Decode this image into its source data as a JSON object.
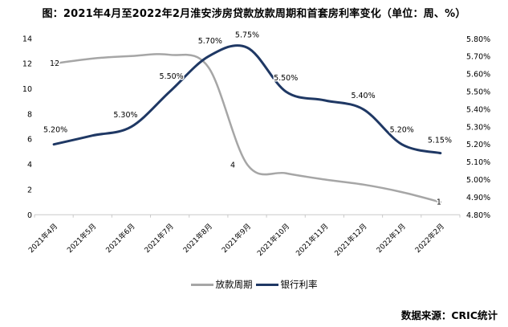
{
  "title": "图：2021年4月至2022年2月淮安涉房贷款放款周期和首套房利率变化（单位：周、%）",
  "source": "数据来源：CRIC统计",
  "colors": {
    "loan_cycle": "#a6a6a6",
    "bank_rate": "#1f3864",
    "axis_line": "#c9c9c9",
    "text": "#000000"
  },
  "chart_data": {
    "type": "line",
    "smooth": true,
    "grid": false,
    "legend_position": "bottom",
    "categories": [
      "2021年4月",
      "2021年5月",
      "2021年6月",
      "2021年7月",
      "2021年8月",
      "2021年9月",
      "2021年10月",
      "2021年11月",
      "2021年12月",
      "2022年1月",
      "2022年2月"
    ],
    "left_axis": {
      "min": 0,
      "max": 14,
      "step": 2,
      "ticks": [
        "0",
        "2",
        "4",
        "6",
        "8",
        "10",
        "12",
        "14"
      ]
    },
    "right_axis": {
      "min": 4.8,
      "max": 5.8,
      "step": 0.1,
      "ticks": [
        "4.80%",
        "4.90%",
        "5.00%",
        "5.10%",
        "5.20%",
        "5.30%",
        "5.40%",
        "5.50%",
        "5.60%",
        "5.70%",
        "5.80%"
      ]
    },
    "series": [
      {
        "id": "loan-cycle",
        "name": "放款周期",
        "axis": "left",
        "color": "#a6a6a6",
        "values": [
          12,
          12.4,
          12.6,
          12.7,
          11.7,
          4,
          3.3,
          2.8,
          2.4,
          1.8,
          1
        ],
        "labels": [
          {
            "index": 0,
            "text": "12",
            "dx": 1,
            "dy": 3
          },
          {
            "index": 5,
            "text": "4",
            "dx": -18,
            "dy": 4
          },
          {
            "index": 10,
            "text": "1",
            "dx": -2,
            "dy": 3
          }
        ]
      },
      {
        "id": "bank-rate",
        "name": "银行利率",
        "axis": "right",
        "color": "#1f3864",
        "values": [
          5.2,
          5.25,
          5.3,
          5.5,
          5.7,
          5.75,
          5.5,
          5.45,
          5.4,
          5.2,
          5.15
        ],
        "labels": [
          {
            "index": 0,
            "text": "5.20%",
            "dx": 2,
            "dy": -15
          },
          {
            "index": 2,
            "text": "5.30%",
            "dx": -7,
            "dy": -12
          },
          {
            "index": 3,
            "text": "5.50%",
            "dx": 2,
            "dy": -16
          },
          {
            "index": 4,
            "text": "5.70%",
            "dx": 2,
            "dy": -16
          },
          {
            "index": 5,
            "text": "5.75%",
            "dx": 0,
            "dy": -13
          },
          {
            "index": 6,
            "text": "5.50%",
            "dx": 0,
            "dy": -14
          },
          {
            "index": 8,
            "text": "5.40%",
            "dx": 0,
            "dy": -14
          },
          {
            "index": 9,
            "text": "5.20%",
            "dx": 0,
            "dy": -15
          },
          {
            "index": 10,
            "text": "5.15%",
            "dx": -1,
            "dy": -13
          }
        ]
      }
    ]
  }
}
